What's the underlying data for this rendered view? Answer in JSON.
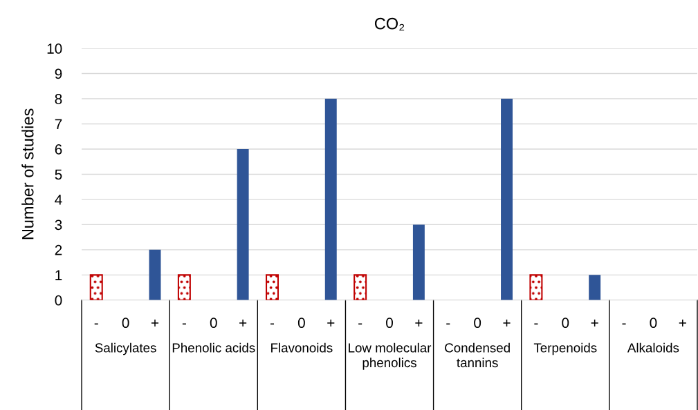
{
  "chart_data": {
    "type": "bar",
    "title": "CO₂",
    "ylabel": "Number of studies",
    "categories": [
      "-",
      "0",
      "+",
      "-",
      "0",
      "+",
      "-",
      "0",
      "+",
      "-",
      "0",
      "+",
      "-",
      "0",
      "+",
      "-",
      "0",
      "+",
      "-",
      "0",
      "+"
    ],
    "series": [
      {
        "color": "#c00000",
        "values": [
          1,
          0,
          2,
          1,
          0,
          6,
          1,
          0,
          8,
          1,
          0,
          3,
          0,
          0,
          8,
          1,
          0,
          1,
          0,
          0,
          0
        ],
        "colors": [
          "#c00000",
          "#c00000",
          "#2f5597",
          "#c00000",
          "#c00000",
          "#2f5597",
          "#c00000",
          "#c00000",
          "#2f5597",
          "#c00000",
          "#c00000",
          "#2f5597",
          "#c00000",
          "#c00000",
          "#2f5597",
          "#c00000",
          "#c00000",
          "#2f5597",
          "#c00000",
          "#c00000",
          "#2f5597"
        ]
      }
    ],
    "annotations": [
      "Salicylates",
      "Phenolic acids",
      "Flavonoids",
      "Low molecular phenolics",
      "Condensed tannins",
      "Terpenoids",
      "Alkaloids"
    ],
    "ylim": [
      0,
      10
    ],
    "yticks": [
      0,
      1,
      2,
      3,
      4,
      5,
      6,
      7,
      8,
      9,
      10
    ],
    "grid": "y",
    "legend": false
  }
}
